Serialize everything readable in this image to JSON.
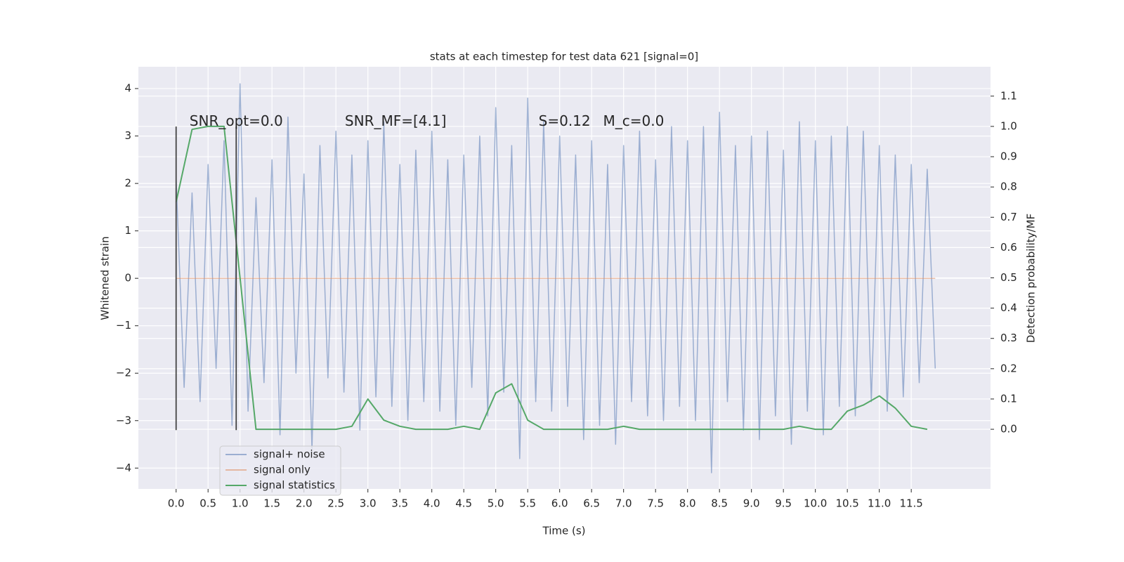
{
  "chart_data": {
    "type": "line",
    "title": "stats at each timestep for test data 621 [signal=0]",
    "xlabel": "Time (s)",
    "ylabel": "Whitened strain",
    "y2label": "Detection probability/MF",
    "xlim": [
      -0.59,
      12.74
    ],
    "ylim": [
      -4.44,
      4.46
    ],
    "y2lim": [
      -0.197,
      1.197
    ],
    "xticks": [
      {
        "value": 0,
        "label": "0.0"
      },
      0.5,
      {
        "value": 1,
        "label": "1.0"
      },
      1.5,
      {
        "value": 2,
        "label": "2.0"
      },
      2.5,
      {
        "value": 3,
        "label": "3.0"
      },
      3.5,
      {
        "value": 4,
        "label": "4.0"
      },
      4.5,
      {
        "value": 5,
        "label": "5.0"
      },
      5.5,
      {
        "value": 6,
        "label": "6.0"
      },
      6.5,
      {
        "value": 7,
        "label": "7.0"
      },
      7.5,
      {
        "value": 8,
        "label": "8.0"
      },
      8.5,
      {
        "value": 9,
        "label": "9.0"
      },
      9.5,
      {
        "value": 10,
        "label": "10.0"
      },
      10.5,
      {
        "value": 11,
        "label": "11.0"
      },
      11.5
    ],
    "yticks": [
      {
        "value": -4,
        "label": "−4"
      },
      {
        "value": -3,
        "label": "−3"
      },
      {
        "value": -2,
        "label": "−2"
      },
      {
        "value": -1,
        "label": "−1"
      },
      0,
      1,
      2,
      3,
      4
    ],
    "y2ticks": [
      {
        "value": 0,
        "label": "0.0"
      },
      0.1,
      0.2,
      0.3,
      0.4,
      0.5,
      0.6,
      0.7,
      0.8,
      0.9,
      {
        "value": 1,
        "label": "1.0"
      },
      1.1
    ],
    "grid": true,
    "legend": "lower left",
    "series": [
      {
        "name": "signal+ noise",
        "color": "#4c72b0",
        "alpha": 0.5,
        "x": [
          0,
          0.125,
          0.25,
          0.375,
          0.5,
          0.625,
          0.75,
          0.875,
          1,
          1.125,
          1.25,
          1.375,
          1.5,
          1.625,
          1.75,
          1.875,
          2,
          2.125,
          2.25,
          2.375,
          2.5,
          2.625,
          2.75,
          2.875,
          3,
          3.125,
          3.25,
          3.375,
          3.5,
          3.625,
          3.75,
          3.875,
          4,
          4.125,
          4.25,
          4.375,
          4.5,
          4.625,
          4.75,
          4.875,
          5,
          5.125,
          5.25,
          5.375,
          5.5,
          5.625,
          5.75,
          5.875,
          6,
          6.125,
          6.25,
          6.375,
          6.5,
          6.625,
          6.75,
          6.875,
          7,
          7.125,
          7.25,
          7.375,
          7.5,
          7.625,
          7.75,
          7.875,
          8,
          8.125,
          8.25,
          8.375,
          8.5,
          8.625,
          8.75,
          8.875,
          9,
          9.125,
          9.25,
          9.375,
          9.5,
          9.625,
          9.75,
          9.875,
          10,
          10.125,
          10.25,
          10.375,
          10.5,
          10.625,
          10.75,
          10.875,
          11,
          11.125,
          11.25,
          11.375,
          11.5,
          11.625,
          11.75,
          11.875
        ],
        "values": [
          2.1,
          -2.3,
          1.8,
          -2.6,
          2.4,
          -1.9,
          2.9,
          -3.1,
          4.1,
          -2.8,
          1.7,
          -2.2,
          2.5,
          -3.3,
          3.4,
          -2.0,
          2.2,
          -3.6,
          2.8,
          -2.1,
          3.1,
          -2.4,
          2.6,
          -3.2,
          2.9,
          -2.5,
          3.3,
          -2.7,
          2.4,
          -3.0,
          2.7,
          -2.6,
          3.1,
          -2.8,
          2.5,
          -3.1,
          2.6,
          -2.3,
          3.0,
          -2.9,
          3.6,
          -2.4,
          2.8,
          -3.8,
          3.8,
          -2.6,
          3.3,
          -2.8,
          3.0,
          -2.7,
          2.6,
          -3.4,
          2.9,
          -3.1,
          2.4,
          -3.5,
          2.8,
          -2.6,
          3.1,
          -2.9,
          2.5,
          -3.0,
          3.2,
          -2.7,
          2.9,
          -3.0,
          3.2,
          -4.1,
          3.5,
          -2.6,
          2.8,
          -3.2,
          3.0,
          -3.4,
          3.1,
          -2.9,
          2.7,
          -3.5,
          3.3,
          -2.8,
          2.9,
          -3.3,
          3.0,
          -2.7,
          3.2,
          -2.9,
          3.1,
          -2.6,
          2.8,
          -2.8,
          2.6,
          -2.5,
          2.4,
          -2.2,
          2.3,
          -1.9
        ]
      },
      {
        "name": "signal only",
        "color": "#dd8452",
        "alpha": 0.5,
        "x": [
          0,
          11.875
        ],
        "values": [
          0,
          0
        ]
      },
      {
        "name": "signal statistics",
        "color": "#55a868",
        "alpha": 1,
        "axis": "y2",
        "x": [
          0,
          0.25,
          0.5,
          0.75,
          1,
          1.25,
          1.5,
          1.75,
          2,
          2.25,
          2.5,
          2.75,
          3,
          3.25,
          3.5,
          3.75,
          4,
          4.25,
          4.5,
          4.75,
          5,
          5.25,
          5.5,
          5.75,
          6,
          6.25,
          6.5,
          6.75,
          7,
          7.25,
          7.5,
          7.75,
          8,
          8.25,
          8.5,
          8.75,
          9,
          9.25,
          9.5,
          9.75,
          10,
          10.25,
          10.5,
          10.75,
          11,
          11.25,
          11.5,
          11.75
        ],
        "values": [
          0.75,
          0.99,
          1.0,
          1.0,
          0.5,
          0.0,
          0.0,
          0.0,
          0.0,
          0.0,
          0.0,
          0.01,
          0.1,
          0.03,
          0.01,
          0.0,
          0.0,
          0.0,
          0.01,
          0.0,
          0.12,
          0.15,
          0.03,
          0.0,
          0.0,
          0.0,
          0.0,
          0.0,
          0.01,
          0.0,
          0.0,
          0.0,
          0.0,
          0.0,
          0.0,
          0.0,
          0.0,
          0.0,
          0.0,
          0.01,
          0.0,
          0.0,
          0.06,
          0.08,
          0.11,
          0.07,
          0.01,
          0.0
        ]
      }
    ],
    "vlines": {
      "x": [
        0,
        0.94
      ],
      "ymin": -3.2,
      "ymax": 3.2,
      "color": "#444444"
    },
    "annotations": [
      {
        "text": "SNR_opt=0.0",
        "x": 0.21,
        "y": 3.3
      },
      {
        "text": "SNR_MF=[4.1]",
        "x": 2.64,
        "y": 3.3
      },
      {
        "text": "S=0.12",
        "x": 5.67,
        "y": 3.3
      },
      {
        "text": "M_c=0.0",
        "x": 6.68,
        "y": 3.3
      }
    ]
  }
}
